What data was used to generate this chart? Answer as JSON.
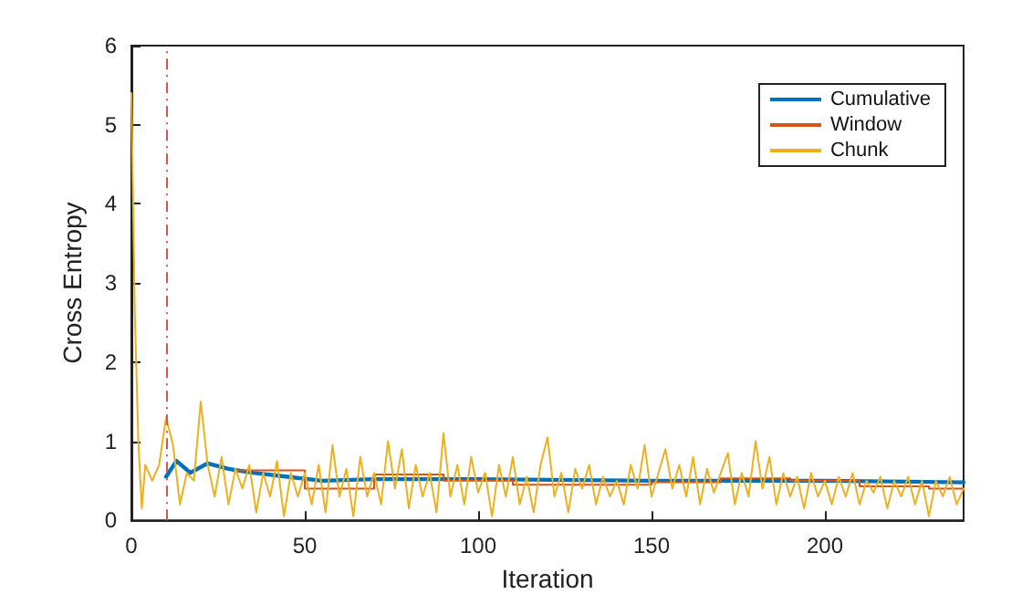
{
  "chart_data": {
    "type": "line",
    "xlabel": "Iteration",
    "ylabel": "Cross Entropy",
    "xlim": [
      0,
      240
    ],
    "xticks": [
      0,
      50,
      100,
      150,
      200
    ],
    "ylim": [
      0,
      6
    ],
    "yticks": [
      0,
      1,
      2,
      3,
      4,
      5,
      6
    ],
    "grid": false,
    "legend": "top right",
    "marker": "none",
    "line_style": "solid",
    "ref_lines": [
      {
        "axis": "x",
        "value": 10,
        "label": null,
        "color": "#d9534f",
        "line_style": "dashdot"
      }
    ],
    "series": [
      {
        "name": "Cumulative",
        "color": "#0072bd",
        "x": [
          10,
          13,
          17,
          22,
          28,
          35,
          45,
          55,
          70,
          100,
          150,
          200,
          240
        ],
        "values": [
          0.55,
          0.75,
          0.6,
          0.72,
          0.65,
          0.6,
          0.55,
          0.5,
          0.52,
          0.52,
          0.5,
          0.5,
          0.48
        ]
      },
      {
        "name": "Window",
        "type": "step",
        "color": "#d95319",
        "x": [
          30,
          50,
          70,
          90,
          110,
          130,
          150,
          170,
          190,
          210,
          230,
          240
        ],
        "values": [
          0.63,
          0.4,
          0.58,
          0.5,
          0.45,
          0.45,
          0.48,
          0.53,
          0.5,
          0.43,
          0.4,
          0.4
        ]
      },
      {
        "name": "Chunk",
        "color": "#edb120",
        "x": [
          0,
          1,
          2,
          3,
          4,
          6,
          8,
          10,
          12,
          14,
          16,
          18,
          20,
          22,
          24,
          26,
          28,
          30,
          32,
          34,
          36,
          38,
          40,
          42,
          44,
          46,
          48,
          50,
          52,
          54,
          56,
          58,
          60,
          62,
          64,
          66,
          68,
          70,
          72,
          74,
          76,
          78,
          80,
          82,
          84,
          86,
          88,
          90,
          92,
          94,
          96,
          98,
          100,
          102,
          104,
          106,
          108,
          110,
          112,
          114,
          116,
          118,
          120,
          122,
          124,
          126,
          128,
          130,
          132,
          134,
          136,
          138,
          140,
          142,
          144,
          146,
          148,
          150,
          152,
          154,
          156,
          158,
          160,
          162,
          164,
          166,
          168,
          170,
          172,
          174,
          176,
          178,
          180,
          182,
          184,
          186,
          188,
          190,
          192,
          194,
          196,
          198,
          200,
          202,
          204,
          206,
          208,
          210,
          212,
          214,
          216,
          218,
          220,
          222,
          224,
          226,
          228,
          230,
          232,
          234,
          236,
          238,
          240
        ],
        "values": [
          5.4,
          2.6,
          1.0,
          0.15,
          0.7,
          0.5,
          0.7,
          1.3,
          0.95,
          0.2,
          0.6,
          0.5,
          1.5,
          0.7,
          0.3,
          0.8,
          0.2,
          0.65,
          0.4,
          0.7,
          0.1,
          0.6,
          0.3,
          0.75,
          0.05,
          0.6,
          0.3,
          0.6,
          0.2,
          0.7,
          0.1,
          0.95,
          0.3,
          0.65,
          0.05,
          0.8,
          0.3,
          0.6,
          0.2,
          1.0,
          0.4,
          0.9,
          0.15,
          0.7,
          0.3,
          0.6,
          0.1,
          1.1,
          0.3,
          0.7,
          0.2,
          0.8,
          0.35,
          0.6,
          0.05,
          0.7,
          0.3,
          0.8,
          0.2,
          0.55,
          0.1,
          0.7,
          1.05,
          0.3,
          0.6,
          0.1,
          0.65,
          0.4,
          0.7,
          0.2,
          0.55,
          0.3,
          0.5,
          0.2,
          0.7,
          0.4,
          0.95,
          0.3,
          0.6,
          0.9,
          0.4,
          0.7,
          0.3,
          0.8,
          0.2,
          0.65,
          0.35,
          0.6,
          0.85,
          0.2,
          0.6,
          0.3,
          1.0,
          0.4,
          0.8,
          0.2,
          0.6,
          0.3,
          0.55,
          0.15,
          0.6,
          0.3,
          0.5,
          0.2,
          0.55,
          0.3,
          0.6,
          0.2,
          0.5,
          0.35,
          0.55,
          0.15,
          0.5,
          0.3,
          0.55,
          0.2,
          0.5,
          0.05,
          0.5,
          0.3,
          0.55,
          0.2,
          0.4
        ]
      }
    ]
  }
}
